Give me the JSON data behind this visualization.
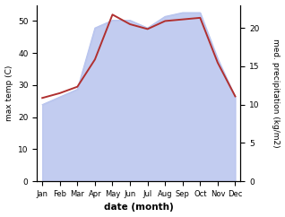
{
  "months": [
    "Jan",
    "Feb",
    "Mar",
    "Apr",
    "May",
    "Jun",
    "Jul",
    "Aug",
    "Sep",
    "Oct",
    "Nov",
    "Dec"
  ],
  "temp": [
    26.0,
    27.5,
    29.5,
    38.0,
    52.0,
    49.0,
    47.5,
    50.0,
    50.5,
    51.0,
    37.0,
    26.5
  ],
  "precip": [
    10.0,
    11.0,
    12.0,
    20.0,
    21.0,
    21.0,
    20.0,
    21.5,
    22.0,
    22.0,
    16.0,
    11.0
  ],
  "temp_color": "#b03030",
  "precip_fill_color": "#b8c4ee",
  "precip_line_color": "#b8c4ee",
  "ylim_left": [
    0,
    55
  ],
  "ylim_right": [
    0,
    23
  ],
  "yticks_left": [
    0,
    10,
    20,
    30,
    40,
    50
  ],
  "yticks_right": [
    0,
    5,
    10,
    15,
    20
  ],
  "xlabel": "date (month)",
  "ylabel_left": "max temp (C)",
  "ylabel_right": "med. precipitation (kg/m2)",
  "figsize": [
    3.18,
    2.42
  ],
  "dpi": 100
}
